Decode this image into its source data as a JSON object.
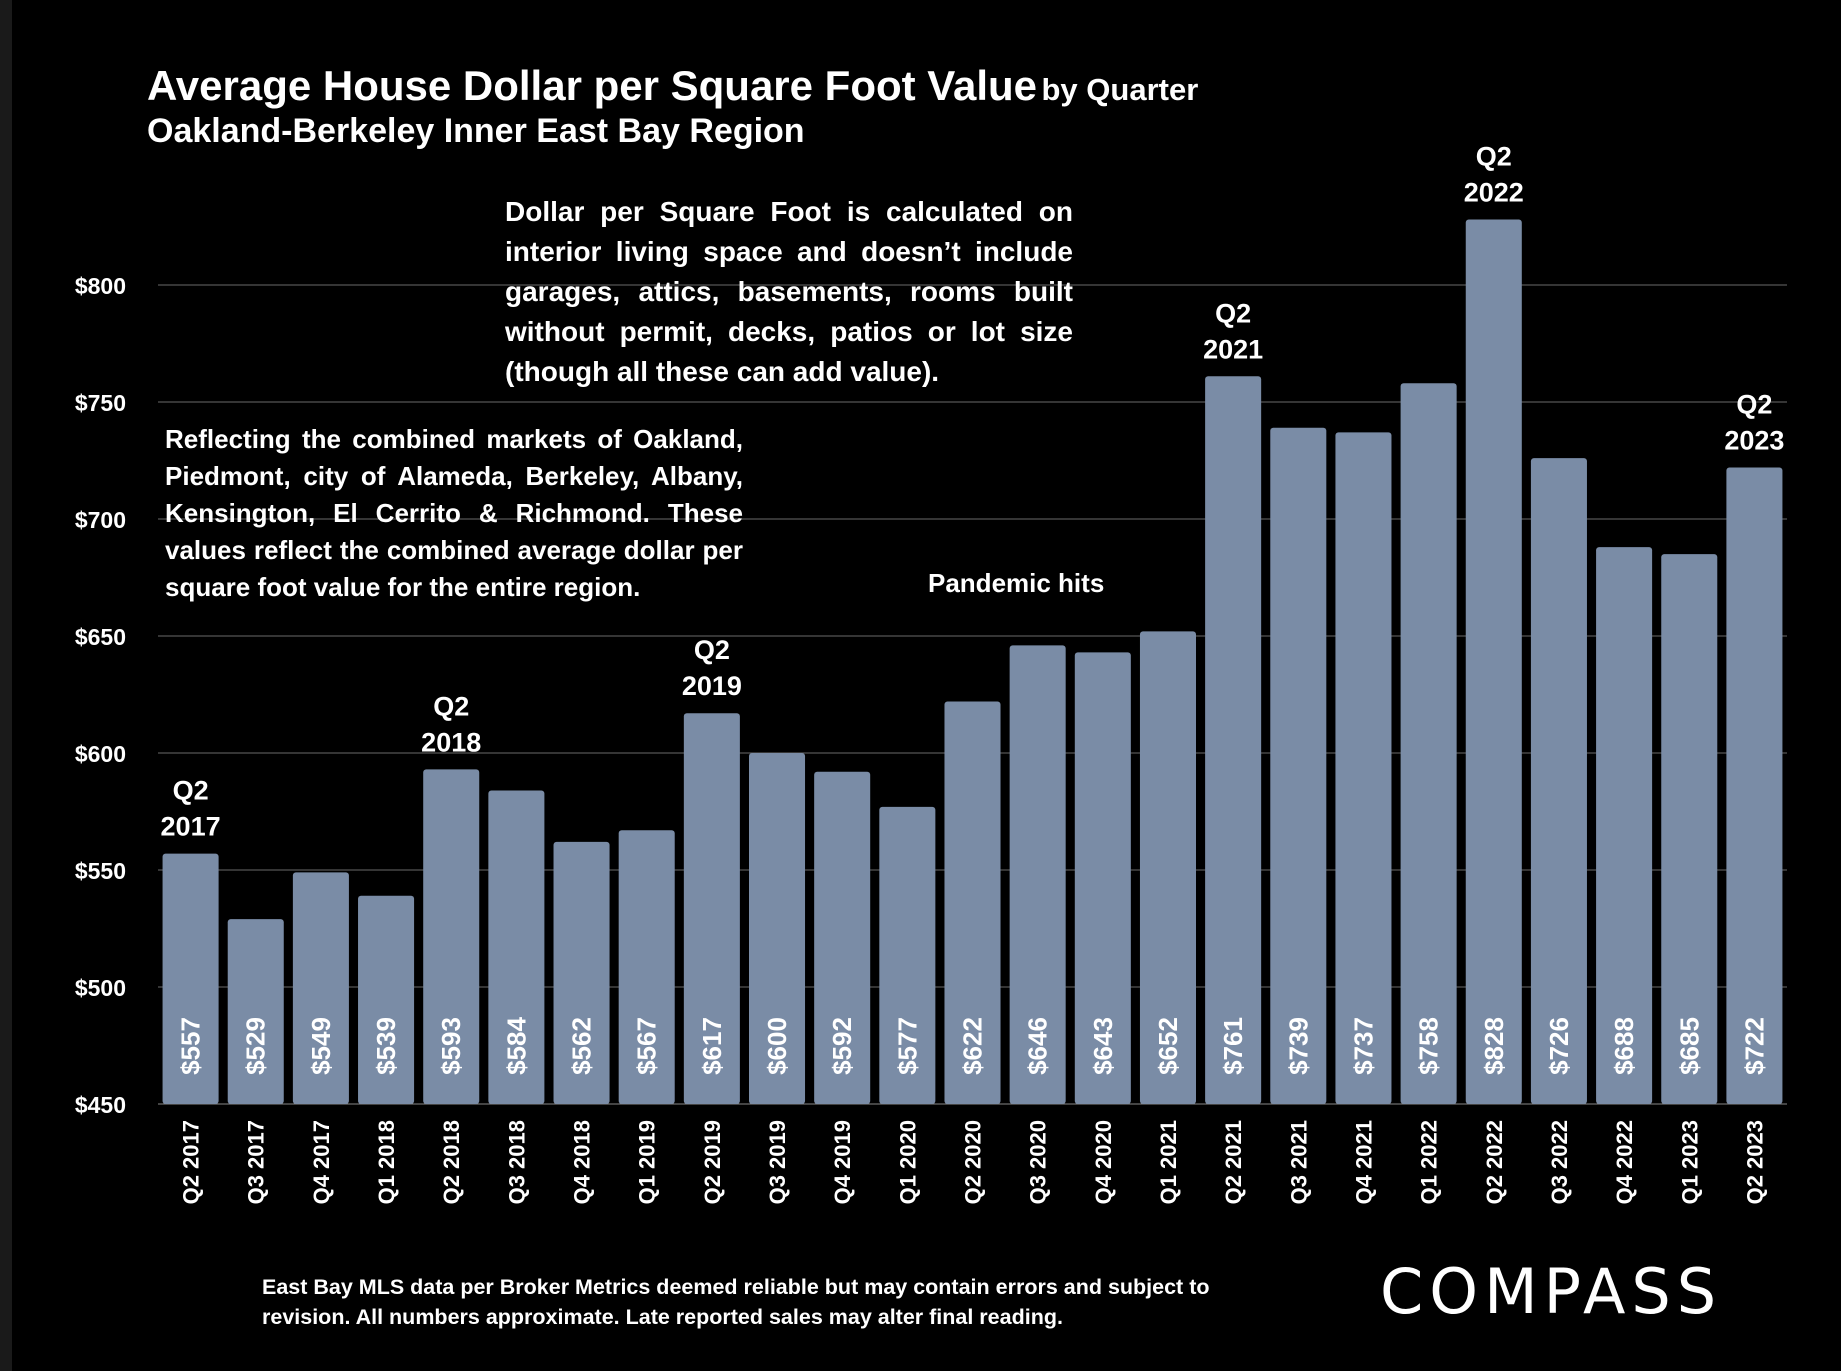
{
  "title": {
    "main": "Average House Dollar per Square Foot Value",
    "suffix": "by Quarter",
    "subtitle": "Oakland-Berkeley Inner East Bay Region"
  },
  "notes": {
    "interior": "Dollar per Square Foot is calculated on interior living space and doesn’t include garages, attics, basements, rooms built without permit, decks, patios or lot size (though all these can add value).",
    "region": "Reflecting the combined markets of Oakland, Piedmont, city of Alameda, Berkeley, Albany, Kensington, El Cerrito & Richmond. These values reflect the combined average dollar per square foot value for the entire region.",
    "pandemic": "Pandemic hits"
  },
  "footer": "East Bay MLS data per Broker Metrics deemed reliable but may contain errors and subject to revision. All numbers approximate. Late reported sales may alter final reading.",
  "logo": "COMPASS",
  "colors": {
    "background": "#000000",
    "bar": "#7a8ca6",
    "text": "#ffffff",
    "grid": "#555555"
  },
  "chart_data": {
    "type": "bar",
    "categories": [
      "Q2 2017",
      "Q3 2017",
      "Q4 2017",
      "Q1 2018",
      "Q2 2018",
      "Q3 2018",
      "Q4 2018",
      "Q1 2019",
      "Q2 2019",
      "Q3 2019",
      "Q4 2019",
      "Q1 2020",
      "Q2 2020",
      "Q3 2020",
      "Q4 2020",
      "Q1 2021",
      "Q2 2021",
      "Q3 2021",
      "Q4 2021",
      "Q1 2022",
      "Q2 2022",
      "Q3 2022",
      "Q4 2022",
      "Q1 2023",
      "Q2 2023"
    ],
    "values": [
      557,
      529,
      549,
      539,
      593,
      584,
      562,
      567,
      617,
      600,
      592,
      577,
      622,
      646,
      643,
      652,
      761,
      739,
      737,
      758,
      828,
      726,
      688,
      685,
      722
    ],
    "value_labels": [
      "$557",
      "$529",
      "$549",
      "$539",
      "$593",
      "$584",
      "$562",
      "$567",
      "$617",
      "$600",
      "$592",
      "$577",
      "$622",
      "$646",
      "$643",
      "$652",
      "$761",
      "$739",
      "$737",
      "$758",
      "$828",
      "$726",
      "$688",
      "$685",
      "$722"
    ],
    "ylim": [
      450,
      830
    ],
    "yticks": [
      450,
      500,
      550,
      600,
      650,
      700,
      750,
      800
    ],
    "ytick_labels": [
      "$450",
      "$500",
      "$550",
      "$600",
      "$650",
      "$700",
      "$750",
      "$800"
    ],
    "grid": true,
    "annotations": [
      {
        "category": "Q2 2017",
        "lines": [
          "Q2",
          "2017"
        ]
      },
      {
        "category": "Q2 2018",
        "lines": [
          "Q2",
          "2018"
        ]
      },
      {
        "category": "Q2 2019",
        "lines": [
          "Q2",
          "2019"
        ]
      },
      {
        "category": "Q2 2021",
        "lines": [
          "Q2",
          "2021"
        ]
      },
      {
        "category": "Q2 2022",
        "lines": [
          "Q2",
          "2022"
        ]
      },
      {
        "category": "Q2 2023",
        "lines": [
          "Q2",
          "2023"
        ]
      }
    ]
  }
}
